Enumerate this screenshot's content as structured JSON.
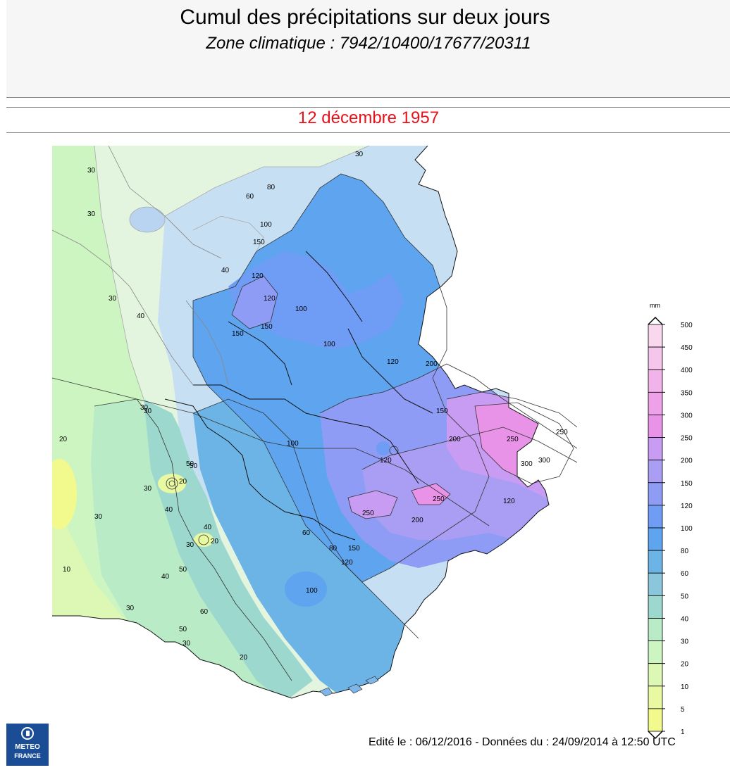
{
  "header": {
    "title": "Cumul des précipitations sur deux jours",
    "subtitle": "Zone climatique : 7942/10400/17677/20311"
  },
  "date": "12 décembre 1957",
  "legend": {
    "unit": "mm",
    "levels": [
      {
        "label": "500",
        "color": "#f9d8ee"
      },
      {
        "label": "450",
        "color": "#f6c5ec"
      },
      {
        "label": "400",
        "color": "#f2b3ea"
      },
      {
        "label": "350",
        "color": "#eea0e9"
      },
      {
        "label": "300",
        "color": "#e993e8"
      },
      {
        "label": "250",
        "color": "#c89cf2"
      },
      {
        "label": "200",
        "color": "#aa9df4"
      },
      {
        "label": "150",
        "color": "#8e9cf5"
      },
      {
        "label": "120",
        "color": "#6f9cf4"
      },
      {
        "label": "100",
        "color": "#5ea4ee"
      },
      {
        "label": "80",
        "color": "#6db4e6"
      },
      {
        "label": "60",
        "color": "#8ac7dc"
      },
      {
        "label": "50",
        "color": "#9dd8cf"
      },
      {
        "label": "40",
        "color": "#b8ebc6"
      },
      {
        "label": "30",
        "color": "#cdf5c1"
      },
      {
        "label": "20",
        "color": "#dcf8b4"
      },
      {
        "label": "10",
        "color": "#e8f9a1"
      },
      {
        "label": "5",
        "color": "#f2fa8d"
      },
      {
        "label": "1",
        "color": "#fafc88"
      }
    ]
  },
  "map": {
    "contour_labels": [
      {
        "text": "30"
      },
      {
        "text": "30"
      },
      {
        "text": "60"
      },
      {
        "text": "80"
      },
      {
        "text": "100"
      },
      {
        "text": "150"
      },
      {
        "text": "120"
      },
      {
        "text": "120"
      },
      {
        "text": "150"
      },
      {
        "text": "150"
      },
      {
        "text": "100"
      },
      {
        "text": "100"
      },
      {
        "text": "120"
      },
      {
        "text": "200"
      },
      {
        "text": "150"
      },
      {
        "text": "200"
      },
      {
        "text": "250"
      },
      {
        "text": "250"
      },
      {
        "text": "300"
      },
      {
        "text": "300"
      },
      {
        "text": "120"
      },
      {
        "text": "120"
      },
      {
        "text": "250"
      },
      {
        "text": "250"
      },
      {
        "text": "200"
      },
      {
        "text": "150"
      },
      {
        "text": "120"
      },
      {
        "text": "100"
      },
      {
        "text": "80"
      },
      {
        "text": "60"
      },
      {
        "text": "50"
      },
      {
        "text": "40"
      },
      {
        "text": "30"
      },
      {
        "text": "20"
      },
      {
        "text": "30"
      },
      {
        "text": "40"
      },
      {
        "text": "30"
      },
      {
        "text": "20"
      },
      {
        "text": "10"
      },
      {
        "text": "20"
      },
      {
        "text": "30"
      },
      {
        "text": "50"
      },
      {
        "text": "60"
      },
      {
        "text": "100"
      },
      {
        "text": "20"
      },
      {
        "text": "30"
      },
      {
        "text": "40"
      },
      {
        "text": "50"
      },
      {
        "text": "30"
      },
      {
        "text": "40"
      },
      {
        "text": "50"
      },
      {
        "text": "30"
      },
      {
        "text": "30"
      },
      {
        "text": "40"
      },
      {
        "text": "30"
      }
    ]
  },
  "logo": {
    "line1": "METEO",
    "line2": "FRANCE"
  },
  "footer": "Edité le : 06/12/2016 - Données du : 24/09/2014 à 12:50 UTC"
}
